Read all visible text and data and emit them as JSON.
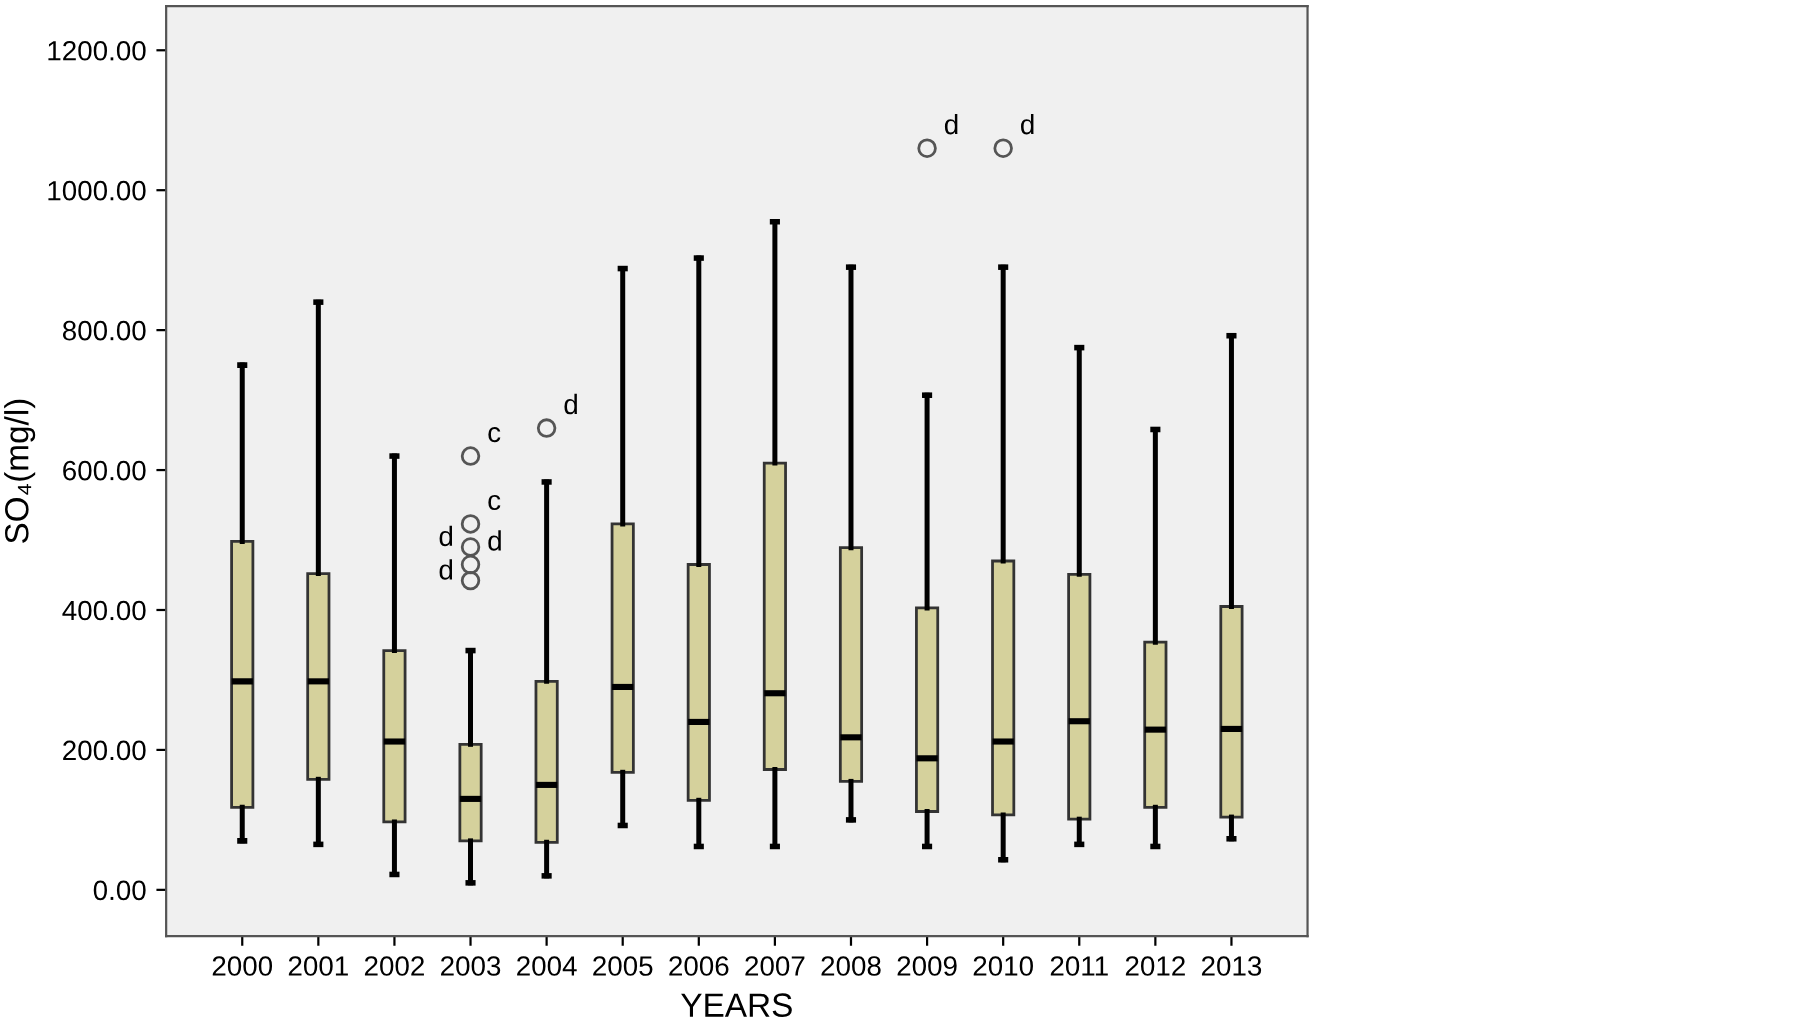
{
  "chart_data": {
    "type": "box",
    "xlabel": "YEARS",
    "ylabel": "SO₄(mg/l)",
    "categories": [
      "2000",
      "2001",
      "2002",
      "2003",
      "2004",
      "2005",
      "2006",
      "2007",
      "2008",
      "2009",
      "2010",
      "2011",
      "2012",
      "2013"
    ],
    "color": "#d5d19c",
    "grid": false,
    "ylim": [
      -66,
      1263
    ],
    "yticks": [
      {
        "value": 0,
        "label": "0.00"
      },
      {
        "value": 200,
        "label": "200.00"
      },
      {
        "value": 400,
        "label": "400.00"
      },
      {
        "value": 600,
        "label": "600.00"
      },
      {
        "value": 800,
        "label": "800.00"
      },
      {
        "value": 1000,
        "label": "1000.00"
      },
      {
        "value": 1200,
        "label": "1200.00"
      }
    ],
    "boxes": [
      {
        "low": 70,
        "q1": 118,
        "median": 298,
        "q3": 498,
        "high": 750
      },
      {
        "low": 65,
        "q1": 158,
        "median": 298,
        "q3": 452,
        "high": 840
      },
      {
        "low": 22,
        "q1": 97,
        "median": 212,
        "q3": 342,
        "high": 620
      },
      {
        "low": 10,
        "q1": 70,
        "median": 130,
        "q3": 208,
        "high": 342,
        "outliers": [
          620,
          523,
          490,
          465,
          442
        ]
      },
      {
        "low": 20,
        "q1": 68,
        "median": 150,
        "q3": 298,
        "high": 583,
        "outliers": [
          660
        ]
      },
      {
        "low": 92,
        "q1": 168,
        "median": 290,
        "q3": 523,
        "high": 888
      },
      {
        "low": 62,
        "q1": 128,
        "median": 240,
        "q3": 465,
        "high": 903
      },
      {
        "low": 62,
        "q1": 172,
        "median": 281,
        "q3": 610,
        "high": 955
      },
      {
        "low": 100,
        "q1": 155,
        "median": 218,
        "q3": 489,
        "high": 890
      },
      {
        "low": 62,
        "q1": 112,
        "median": 188,
        "q3": 403,
        "high": 707,
        "outliers": [
          1060
        ]
      },
      {
        "low": 43,
        "q1": 107,
        "median": 212,
        "q3": 470,
        "high": 890,
        "outliers": [
          1060
        ]
      },
      {
        "low": 65,
        "q1": 101,
        "median": 241,
        "q3": 451,
        "high": 775
      },
      {
        "low": 62,
        "q1": 118,
        "median": 229,
        "q3": 354,
        "high": 658
      },
      {
        "low": 73,
        "q1": 104,
        "median": 230,
        "q3": 405,
        "high": 792
      }
    ],
    "annotations": [
      "c",
      "c",
      "d",
      "d",
      "d",
      "d",
      "d",
      "d"
    ]
  }
}
